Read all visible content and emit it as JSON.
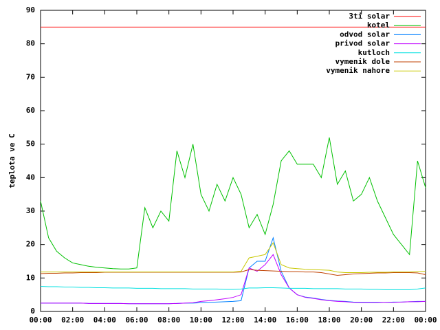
{
  "chart_data": {
    "type": "line",
    "ylabel": "teplota ve C",
    "xlim": [
      0,
      24
    ],
    "xticks": [
      {
        "value": 0,
        "label": "00:00"
      },
      {
        "value": 2,
        "label": "02:00"
      },
      {
        "value": 4,
        "label": "04:00"
      },
      {
        "value": 6,
        "label": "06:00"
      },
      {
        "value": 8,
        "label": "08:00"
      },
      {
        "value": 10,
        "label": "10:00"
      },
      {
        "value": 12,
        "label": "12:00"
      },
      {
        "value": 14,
        "label": "14:00"
      },
      {
        "value": 16,
        "label": "16:00"
      },
      {
        "value": 18,
        "label": "18:00"
      },
      {
        "value": 20,
        "label": "20:00"
      },
      {
        "value": 22,
        "label": "22:00"
      },
      {
        "value": 24,
        "label": "00:00"
      }
    ],
    "ylim": [
      0,
      90
    ],
    "yticks": [
      0,
      10,
      20,
      30,
      40,
      50,
      60,
      70,
      80,
      90
    ],
    "legend": "top-right",
    "x": [
      0,
      0.5,
      1,
      1.5,
      2,
      2.5,
      3,
      3.5,
      4,
      4.5,
      5,
      5.5,
      6,
      6.5,
      7,
      7.5,
      8,
      8.5,
      9,
      9.5,
      10,
      10.5,
      11,
      11.5,
      12,
      12.5,
      13,
      13.5,
      14,
      14.5,
      15,
      15.5,
      16,
      16.5,
      17,
      17.5,
      18,
      18.5,
      19,
      19.5,
      20,
      20.5,
      21,
      21.5,
      22,
      22.5,
      23,
      23.5,
      24
    ],
    "series": [
      {
        "name": "3ti solar",
        "color": "#ff0000",
        "values": [
          85,
          85,
          85,
          85,
          85,
          85,
          85,
          85,
          85,
          85,
          85,
          85,
          85,
          85,
          85,
          85,
          85,
          85,
          85,
          85,
          85,
          85,
          85,
          85,
          85,
          85,
          85,
          85,
          85,
          85,
          85,
          85,
          85,
          85,
          85,
          85,
          85,
          85,
          85,
          85,
          85,
          85,
          85,
          85,
          85,
          85,
          85,
          85,
          85
        ]
      },
      {
        "name": "kotel",
        "color": "#00c000",
        "values": [
          33,
          22,
          18,
          16,
          14.5,
          14,
          13.5,
          13.2,
          13,
          12.8,
          12.7,
          12.7,
          13,
          31,
          25,
          30,
          27,
          48,
          40,
          50,
          35,
          30,
          38,
          33,
          40,
          35,
          25,
          29,
          23,
          32,
          45,
          48,
          44,
          44,
          44,
          40,
          52,
          38,
          42,
          33,
          35,
          40,
          33,
          28,
          23,
          20,
          17,
          45,
          37
        ]
      },
      {
        "name": "odvod solar",
        "color": "#0080ff",
        "values": [
          2.5,
          2.5,
          2.5,
          2.5,
          2.5,
          2.5,
          2.4,
          2.4,
          2.4,
          2.4,
          2.4,
          2.3,
          2.3,
          2.3,
          2.3,
          2.3,
          2.3,
          2.4,
          2.5,
          2.5,
          2.6,
          2.7,
          2.8,
          2.9,
          3,
          3.2,
          13,
          15,
          15,
          22,
          12,
          7,
          5,
          4.3,
          4,
          3.6,
          3.3,
          3.1,
          3,
          2.8,
          2.7,
          2.7,
          2.7,
          2.7,
          2.8,
          2.8,
          2.9,
          3,
          3
        ]
      },
      {
        "name": "privod solar",
        "color": "#c000ff",
        "values": [
          2.5,
          2.5,
          2.5,
          2.5,
          2.5,
          2.5,
          2.4,
          2.4,
          2.4,
          2.4,
          2.4,
          2.3,
          2.3,
          2.3,
          2.3,
          2.3,
          2.3,
          2.4,
          2.5,
          2.6,
          3,
          3.2,
          3.5,
          3.8,
          4.2,
          5,
          13,
          12,
          14,
          17,
          11,
          7,
          5,
          4.2,
          3.9,
          3.5,
          3.2,
          3,
          2.9,
          2.7,
          2.6,
          2.6,
          2.6,
          2.7,
          2.7,
          2.8,
          2.9,
          2.9,
          3
        ]
      },
      {
        "name": "kutloch",
        "color": "#00e0e0",
        "values": [
          7.5,
          7.4,
          7.4,
          7.3,
          7.3,
          7.2,
          7.2,
          7.1,
          7.1,
          7,
          7,
          7,
          6.9,
          6.9,
          6.9,
          6.8,
          6.8,
          6.8,
          6.8,
          6.7,
          6.7,
          6.7,
          6.7,
          6.6,
          6.6,
          6.7,
          7,
          7,
          7.1,
          7.1,
          7,
          6.9,
          6.9,
          6.9,
          6.8,
          6.8,
          6.8,
          6.8,
          6.7,
          6.7,
          6.7,
          6.6,
          6.6,
          6.5,
          6.5,
          6.5,
          6.5,
          6.7,
          7
        ]
      },
      {
        "name": "vymenik dole",
        "color": "#c04000",
        "values": [
          11.3,
          11.4,
          11.4,
          11.5,
          11.5,
          11.6,
          11.6,
          11.6,
          11.7,
          11.7,
          11.7,
          11.7,
          11.7,
          11.7,
          11.7,
          11.7,
          11.7,
          11.7,
          11.7,
          11.7,
          11.7,
          11.7,
          11.7,
          11.7,
          11.7,
          11.8,
          12.5,
          12.3,
          12.2,
          12.1,
          12,
          11.9,
          11.9,
          11.8,
          11.8,
          11.6,
          11.2,
          10.8,
          11,
          11.2,
          11.3,
          11.4,
          11.5,
          11.5,
          11.6,
          11.6,
          11.6,
          11.5,
          11
        ]
      },
      {
        "name": "vymenik nahore",
        "color": "#c8c800",
        "values": [
          11.8,
          11.8,
          11.8,
          11.8,
          11.8,
          11.8,
          11.8,
          11.8,
          11.8,
          11.8,
          11.8,
          11.8,
          11.8,
          11.8,
          11.8,
          11.8,
          11.8,
          11.8,
          11.8,
          11.8,
          11.8,
          11.8,
          11.8,
          11.8,
          11.8,
          12,
          16,
          16.5,
          17,
          20.5,
          14,
          13,
          12.8,
          12.6,
          12.5,
          12.4,
          12.3,
          11.8,
          11.6,
          11.6,
          11.6,
          11.7,
          11.7,
          11.7,
          11.8,
          11.8,
          11.8,
          11.9,
          12
        ]
      }
    ]
  }
}
